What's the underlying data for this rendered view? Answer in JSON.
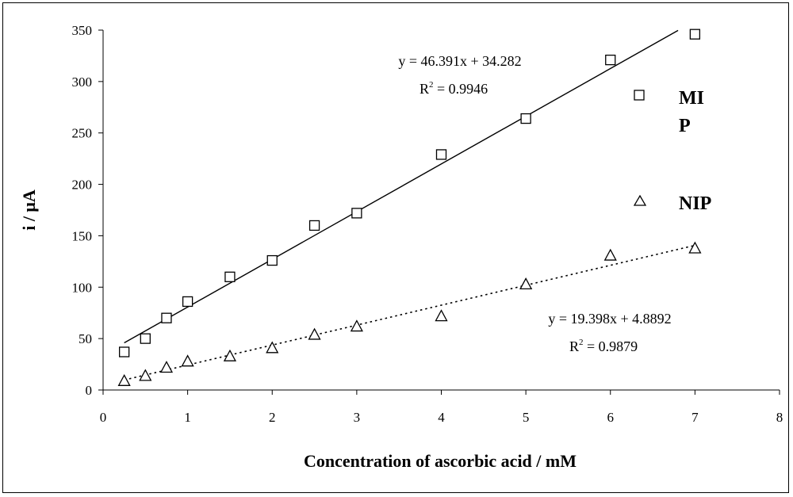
{
  "chart_data": {
    "type": "scatter",
    "xlabel": "Concentration of ascorbic acid / mM",
    "ylabel": "i / μA",
    "xlim": [
      0,
      8
    ],
    "ylim": [
      0,
      350
    ],
    "xticks": [
      "0",
      "1",
      "2",
      "3",
      "4",
      "5",
      "6",
      "7",
      "8"
    ],
    "yticks": [
      "0",
      "50",
      "100",
      "150",
      "200",
      "250",
      "300",
      "350"
    ],
    "grid": false,
    "legend_position": "right",
    "series": [
      {
        "name": "MIP",
        "legend_line1": "MI",
        "legend_line2": "P",
        "marker": "square",
        "trendline": "solid",
        "x": [
          0.25,
          0.5,
          0.75,
          1,
          1.5,
          2,
          2.5,
          3,
          4,
          5,
          6,
          7
        ],
        "y": [
          37,
          50,
          70,
          86,
          110,
          126,
          160,
          172,
          229,
          264,
          321,
          346
        ],
        "fit": {
          "slope": 46.391,
          "intercept": 34.282,
          "x_range": [
            0.25,
            6.8
          ]
        },
        "equation": "y = 46.391x + 34.282",
        "r2_label": "R",
        "r2_value": " = 0.9946"
      },
      {
        "name": "NIP",
        "marker": "triangle",
        "trendline": "dotted",
        "x": [
          0.25,
          0.5,
          0.75,
          1,
          1.5,
          2,
          2.5,
          3,
          4,
          5,
          6,
          7
        ],
        "y": [
          9,
          14,
          22,
          28,
          33,
          41,
          54,
          62,
          72,
          103,
          131,
          138
        ],
        "fit": {
          "slope": 19.398,
          "intercept": 4.8892,
          "x_range": [
            0.25,
            7
          ]
        },
        "equation": "y = 19.398x + 4.8892",
        "r2_label": "R",
        "r2_value": " = 0.9879"
      }
    ]
  }
}
